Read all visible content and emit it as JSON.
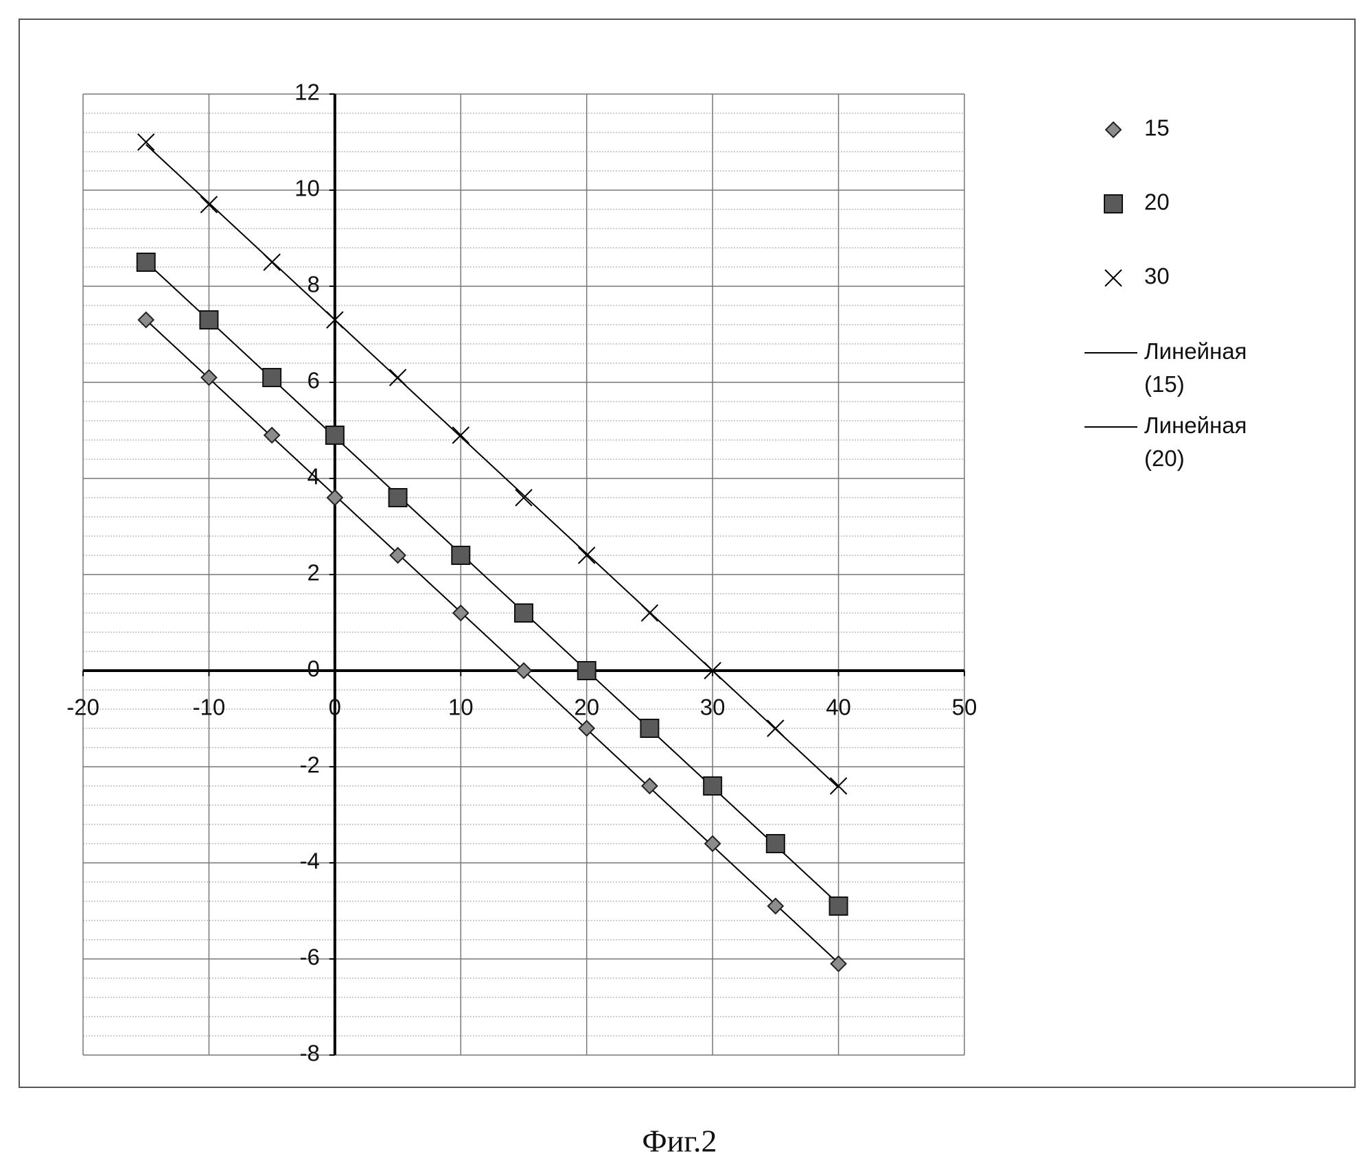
{
  "chart_data": {
    "type": "scatter",
    "caption": "Фиг.2",
    "x": [
      -15,
      -10,
      -5,
      0,
      5,
      10,
      15,
      20,
      25,
      30,
      35,
      40
    ],
    "series": [
      {
        "name": "15",
        "color": "#8c8c8c",
        "marker": "diamond",
        "trendline": "Линейная (15)",
        "values": [
          7.3,
          6.1,
          4.9,
          3.6,
          2.4,
          1.2,
          0,
          -1.2,
          -2.4,
          -3.6,
          -4.9,
          -6.1
        ]
      },
      {
        "name": "20",
        "color": "#5a5a5a",
        "marker": "square",
        "trendline": "Линейная (20)",
        "values": [
          8.5,
          7.3,
          6.1,
          4.9,
          3.6,
          2.4,
          1.2,
          0,
          -1.2,
          -2.4,
          -3.6,
          -4.9
        ]
      },
      {
        "name": "30",
        "color": "#000000",
        "marker": "cross",
        "trendline": true,
        "values": [
          11.0,
          9.7,
          8.5,
          7.3,
          6.1,
          4.9,
          3.6,
          2.4,
          1.2,
          0,
          -1.2,
          -2.4
        ]
      }
    ],
    "xlim": [
      -20,
      50
    ],
    "xticks": [
      -20,
      -10,
      0,
      10,
      20,
      30,
      40,
      50
    ],
    "ylim": [
      -8,
      12
    ],
    "yticks": [
      -8,
      -6,
      -4,
      -2,
      0,
      2,
      4,
      6,
      8,
      10,
      12
    ],
    "grid": true,
    "y_minor_divisions": 5,
    "legend": "right"
  }
}
